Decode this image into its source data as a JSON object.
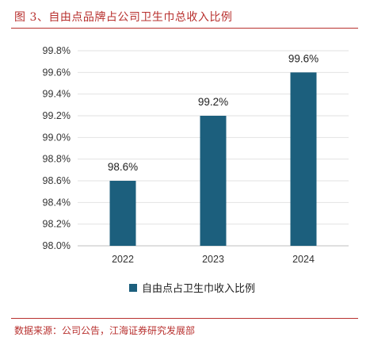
{
  "figure": {
    "title": "图 3、自由点品牌占公司卫生巾总收入比例",
    "source": "数据来源：公司公告，江海证券研究发展部"
  },
  "chart_data": {
    "type": "bar",
    "categories": [
      "2022",
      "2023",
      "2024"
    ],
    "series": [
      {
        "name": "自由点占卫生巾收入比例",
        "values": [
          98.6,
          99.2,
          99.6
        ],
        "labels": [
          "98.6%",
          "99.2%",
          "99.6%"
        ],
        "color": "#1c5f7d"
      }
    ],
    "ylim": [
      98.0,
      99.8
    ],
    "yticks": [
      "98.0%",
      "98.2%",
      "98.4%",
      "98.6%",
      "98.8%",
      "99.0%",
      "99.2%",
      "99.4%",
      "99.6%",
      "99.8%"
    ],
    "grid": true,
    "legend_position": "bottom"
  }
}
